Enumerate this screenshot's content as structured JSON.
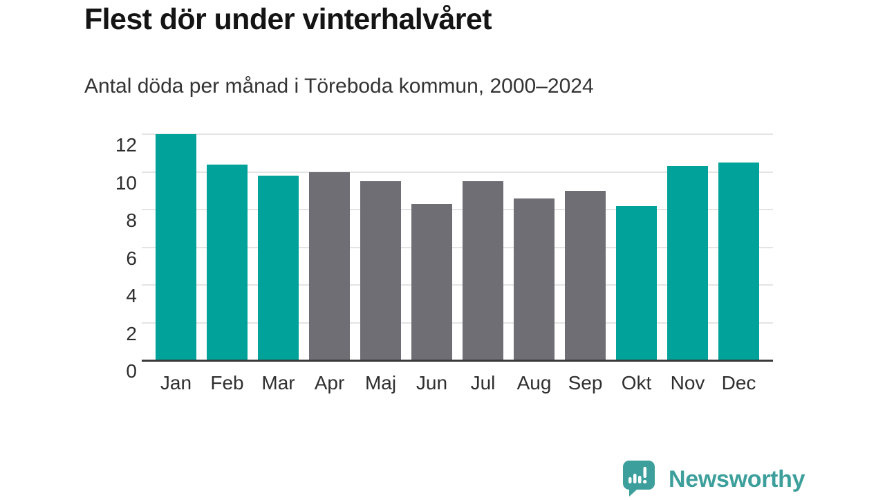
{
  "chart_data": {
    "type": "bar",
    "title": "Flest dör under vinterhalvåret",
    "subtitle": "Antal döda per månad i Töreboda kommun, 2000–2024",
    "categories": [
      "Jan",
      "Feb",
      "Mar",
      "Apr",
      "Maj",
      "Jun",
      "Jul",
      "Aug",
      "Sep",
      "Okt",
      "Nov",
      "Dec"
    ],
    "values": [
      12.0,
      10.4,
      9.8,
      10.0,
      9.5,
      8.3,
      9.5,
      8.6,
      9.0,
      8.2,
      10.3,
      10.5
    ],
    "highlighted": [
      true,
      true,
      true,
      false,
      false,
      false,
      false,
      false,
      false,
      true,
      true,
      true
    ],
    "colors": {
      "highlight": "#00a299",
      "default": "#6e6e74"
    },
    "xlabel": "",
    "ylabel": "",
    "ylim": [
      0,
      12
    ],
    "yticks": [
      0,
      2,
      4,
      6,
      8,
      10,
      12
    ],
    "grid": "horizontal",
    "legend": "none"
  },
  "footer": {
    "brand": "Newsworthy",
    "logo_icon": "newsworthy-bar-chart-speech-bubble-icon",
    "logo_color": "#3d9f9b"
  }
}
